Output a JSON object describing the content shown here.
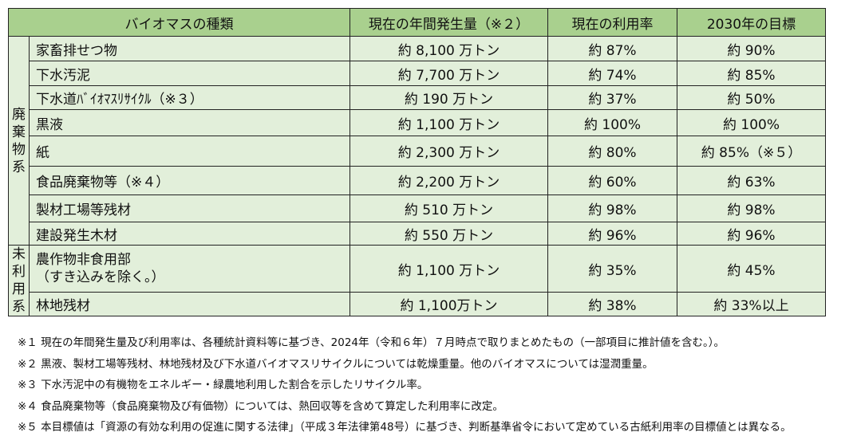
{
  "table": {
    "headers": {
      "type": "バイオマスの種類",
      "generation": "現在の年間発生量（※２）",
      "rate": "現在の利用率",
      "target": "2030年の目標"
    },
    "groups": [
      {
        "label_chars": [
          "廃",
          "棄",
          "物",
          "系"
        ],
        "rows": [
          {
            "name": "家畜排せつ物",
            "generation": "約 8,100 万トン",
            "rate": "約 87%",
            "target": "約 90%"
          },
          {
            "name": "下水汚泥",
            "generation": "約 7,700 万トン",
            "rate": "約 74%",
            "target": "約 85%"
          },
          {
            "name": "下水道ﾊﾞｲｵﾏｽﾘｻｲｸﾙ（※３）",
            "generation": "約 190 万トン",
            "rate": "約 37%",
            "target": "約 50%"
          },
          {
            "name": "黒液",
            "generation": "約 1,100 万トン",
            "rate": "約 100%",
            "target": "約 100%"
          },
          {
            "name": "紙",
            "generation": "約 2,300 万トン",
            "rate": "約 80%",
            "target": "約 85%（※５）"
          },
          {
            "name": "食品廃棄物等（※４）",
            "generation": "約 2,200 万トン",
            "rate": "約 60%",
            "target": "約 63%"
          },
          {
            "name": "製材工場等残材",
            "generation": "約 510 万トン",
            "rate": "約 98%",
            "target": "約 98%"
          },
          {
            "name": "建設発生木材",
            "generation": "約 550 万トン",
            "rate": "約 96%",
            "target": "約 96%"
          }
        ]
      },
      {
        "label_chars": [
          "未",
          "利",
          "用",
          "系"
        ],
        "rows": [
          {
            "name_line1": "農作物非食用部",
            "name_line2": "（すき込みを除く。）",
            "generation": "約 1,100 万トン",
            "rate": "約 35%",
            "target": "約 45%"
          },
          {
            "name": "林地残材",
            "generation": "約 1,100万トン",
            "rate": "約 38%",
            "target": "約 33%以上"
          }
        ]
      }
    ]
  },
  "notes": [
    "※１ 現在の年間発生量及び利用率は、各種統計資料等に基づき、2024年（令和６年）７月時点で取りまとめたもの（一部項目に推計値を含む。）。",
    "※２ 黒液、製材工場等残材、林地残材及び下水道バイオマスリサイクルについては乾燥重量。他のバイオマスについては湿潤重量。",
    "※３ 下水汚泥中の有機物をエネルギー・緑農地利用した割合を示したリサイクル率。",
    "※４ 食品廃棄物等（食品廃棄物及び有価物）については、熱回収等を含めて算定した利用率に改定。",
    "※５ 本目標値は「資源の有効な利用の促進に関する法律」（平成３年法律第48号）に基づき、判断基準省令において定めている古紙利用率の目標値とは異なる。"
  ],
  "colors": {
    "header_bg": "#a9d08e",
    "cell_bg": "#e2efda",
    "border": "#222222"
  }
}
